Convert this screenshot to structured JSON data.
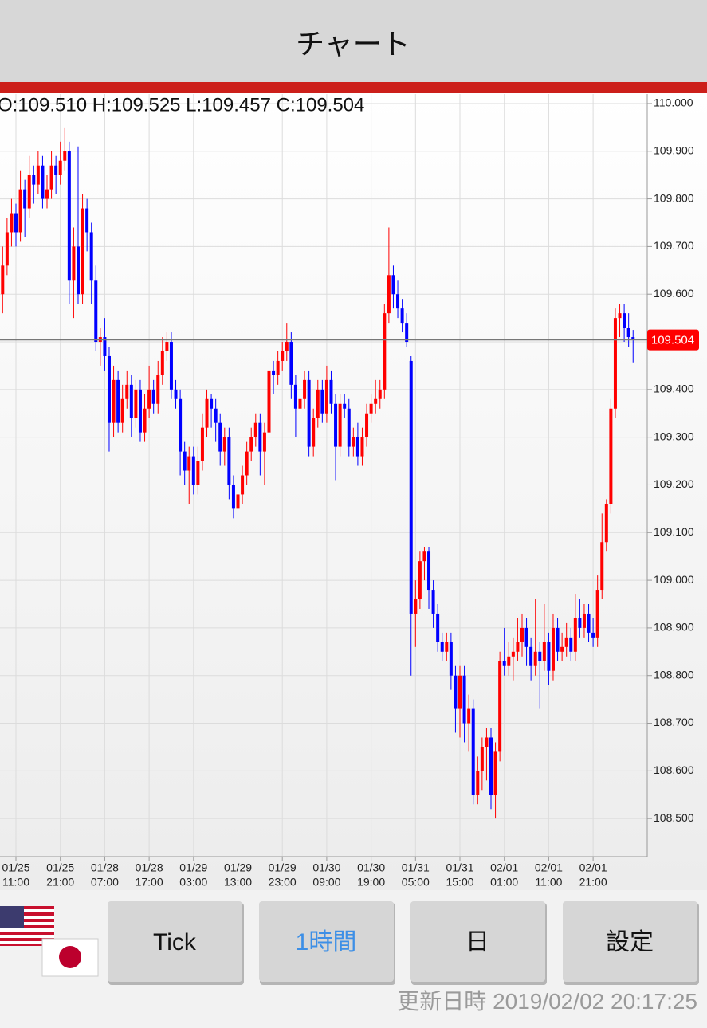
{
  "header": {
    "title": "チャート"
  },
  "chart_data": {
    "type": "candlestick",
    "ohlc_header": "O:109.510 H:109.525 L:109.457 C:109.504",
    "up_color": "#ff0000",
    "down_color": "#0000ff",
    "grid": true,
    "ylim": [
      108.42,
      110.02
    ],
    "yticks": [
      {
        "value": 110,
        "label": "110.000"
      },
      {
        "value": 109.9,
        "label": "109.900"
      },
      {
        "value": 109.8,
        "label": "109.800"
      },
      {
        "value": 109.7,
        "label": "109.700"
      },
      {
        "value": 109.6,
        "label": "109.600"
      },
      {
        "value": 109.5,
        "label": "109.500"
      },
      {
        "value": 109.4,
        "label": "109.400"
      },
      {
        "value": 109.3,
        "label": "109.300"
      },
      {
        "value": 109.2,
        "label": "109.200"
      },
      {
        "value": 109.1,
        "label": "109.100"
      },
      {
        "value": 109,
        "label": "109.000"
      },
      {
        "value": 108.9,
        "label": "108.900"
      },
      {
        "value": 108.8,
        "label": "108.800"
      },
      {
        "value": 108.7,
        "label": "108.700"
      },
      {
        "value": 108.6,
        "label": "108.600"
      },
      {
        "value": 108.5,
        "label": "108.500"
      }
    ],
    "categories": [
      null,
      null,
      null,
      [
        "01/25",
        "11:00"
      ],
      null,
      null,
      null,
      null,
      null,
      null,
      null,
      null,
      null,
      [
        "01/25",
        "21:00"
      ],
      null,
      null,
      null,
      null,
      null,
      null,
      null,
      null,
      null,
      [
        "01/28",
        "07:00"
      ],
      null,
      null,
      null,
      null,
      null,
      null,
      null,
      null,
      null,
      [
        "01/28",
        "17:00"
      ],
      null,
      null,
      null,
      null,
      null,
      null,
      null,
      null,
      null,
      [
        "01/29",
        "03:00"
      ],
      null,
      null,
      null,
      null,
      null,
      null,
      null,
      null,
      null,
      [
        "01/29",
        "13:00"
      ],
      null,
      null,
      null,
      null,
      null,
      null,
      null,
      null,
      null,
      [
        "01/29",
        "23:00"
      ],
      null,
      null,
      null,
      null,
      null,
      null,
      null,
      null,
      null,
      [
        "01/30",
        "09:00"
      ],
      null,
      null,
      null,
      null,
      null,
      null,
      null,
      null,
      null,
      [
        "01/30",
        "19:00"
      ],
      null,
      null,
      null,
      null,
      null,
      null,
      null,
      null,
      null,
      [
        "01/31",
        "05:00"
      ],
      null,
      null,
      null,
      null,
      null,
      null,
      null,
      null,
      null,
      [
        "01/31",
        "15:00"
      ],
      null,
      null,
      null,
      null,
      null,
      null,
      null,
      null,
      null,
      [
        "02/01",
        "01:00"
      ],
      null,
      null,
      null,
      null,
      null,
      null,
      null,
      null,
      null,
      [
        "02/01",
        "11:00"
      ],
      null,
      null,
      null,
      null,
      null,
      null,
      null,
      null,
      null,
      [
        "02/01",
        "21:00"
      ],
      null,
      null,
      null,
      null,
      null,
      null,
      null,
      null,
      null
    ],
    "ohlc": [
      [
        109.6,
        109.7,
        109.56,
        109.66
      ],
      [
        109.66,
        109.76,
        109.64,
        109.73
      ],
      [
        109.73,
        109.8,
        109.7,
        109.77
      ],
      [
        109.77,
        109.79,
        109.7,
        109.73
      ],
      [
        109.73,
        109.86,
        109.71,
        109.82
      ],
      [
        109.82,
        109.84,
        109.72,
        109.78
      ],
      [
        109.78,
        109.89,
        109.76,
        109.85
      ],
      [
        109.85,
        109.87,
        109.79,
        109.83
      ],
      [
        109.83,
        109.9,
        109.81,
        109.87
      ],
      [
        109.87,
        109.89,
        109.78,
        109.8
      ],
      [
        109.8,
        109.85,
        109.78,
        109.82
      ],
      [
        109.82,
        109.9,
        109.8,
        109.87
      ],
      [
        109.87,
        109.89,
        109.81,
        109.85
      ],
      [
        109.85,
        109.92,
        109.83,
        109.88
      ],
      [
        109.88,
        109.95,
        109.86,
        109.9
      ],
      [
        109.9,
        109.92,
        109.58,
        109.63
      ],
      [
        109.63,
        109.74,
        109.55,
        109.7
      ],
      [
        109.7,
        109.91,
        109.58,
        109.6
      ],
      [
        109.6,
        109.81,
        109.58,
        109.78
      ],
      [
        109.78,
        109.8,
        109.69,
        109.73
      ],
      [
        109.73,
        109.75,
        109.58,
        109.63
      ],
      [
        109.63,
        109.66,
        109.48,
        109.5
      ],
      [
        109.5,
        109.53,
        109.45,
        109.51
      ],
      [
        109.51,
        109.55,
        109.44,
        109.47
      ],
      [
        109.47,
        109.49,
        109.27,
        109.33
      ],
      [
        109.33,
        109.45,
        109.3,
        109.42
      ],
      [
        109.42,
        109.44,
        109.31,
        109.33
      ],
      [
        109.33,
        109.41,
        109.31,
        109.38
      ],
      [
        109.38,
        109.44,
        109.36,
        109.41
      ],
      [
        109.41,
        109.43,
        109.3,
        109.34
      ],
      [
        109.34,
        109.42,
        109.32,
        109.4
      ],
      [
        109.4,
        109.42,
        109.29,
        109.31
      ],
      [
        109.31,
        109.39,
        109.29,
        109.36
      ],
      [
        109.36,
        109.45,
        109.34,
        109.4
      ],
      [
        109.4,
        109.42,
        109.35,
        109.37
      ],
      [
        109.37,
        109.46,
        109.35,
        109.43
      ],
      [
        109.43,
        109.51,
        109.41,
        109.48
      ],
      [
        109.48,
        109.52,
        109.46,
        109.5
      ],
      [
        109.5,
        109.52,
        109.38,
        109.4
      ],
      [
        109.4,
        109.42,
        109.36,
        109.38
      ],
      [
        109.38,
        109.4,
        109.22,
        109.27
      ],
      [
        109.27,
        109.29,
        109.2,
        109.23
      ],
      [
        109.23,
        109.28,
        109.16,
        109.26
      ],
      [
        109.26,
        109.28,
        109.18,
        109.2
      ],
      [
        109.2,
        109.28,
        109.18,
        109.25
      ],
      [
        109.25,
        109.35,
        109.23,
        109.32
      ],
      [
        109.32,
        109.4,
        109.3,
        109.38
      ],
      [
        109.38,
        109.39,
        109.32,
        109.36
      ],
      [
        109.36,
        109.38,
        109.29,
        109.33
      ],
      [
        109.33,
        109.35,
        109.24,
        109.27
      ],
      [
        109.27,
        109.32,
        109.24,
        109.3
      ],
      [
        109.3,
        109.32,
        109.17,
        109.2
      ],
      [
        109.2,
        109.22,
        109.13,
        109.15
      ],
      [
        109.15,
        109.2,
        109.13,
        109.18
      ],
      [
        109.18,
        109.24,
        109.16,
        109.22
      ],
      [
        109.22,
        109.29,
        109.2,
        109.27
      ],
      [
        109.27,
        109.32,
        109.25,
        109.3
      ],
      [
        109.3,
        109.35,
        109.28,
        109.33
      ],
      [
        109.33,
        109.35,
        109.22,
        109.27
      ],
      [
        109.27,
        109.33,
        109.2,
        109.31
      ],
      [
        109.31,
        109.46,
        109.29,
        109.44
      ],
      [
        109.44,
        109.46,
        109.39,
        109.43
      ],
      [
        109.43,
        109.48,
        109.41,
        109.46
      ],
      [
        109.46,
        109.5,
        109.44,
        109.48
      ],
      [
        109.48,
        109.54,
        109.46,
        109.5
      ],
      [
        109.5,
        109.52,
        109.38,
        109.41
      ],
      [
        109.41,
        109.43,
        109.3,
        109.36
      ],
      [
        109.36,
        109.4,
        109.34,
        109.38
      ],
      [
        109.38,
        109.44,
        109.36,
        109.42
      ],
      [
        109.42,
        109.44,
        109.26,
        109.28
      ],
      [
        109.28,
        109.36,
        109.26,
        109.34
      ],
      [
        109.34,
        109.42,
        109.32,
        109.4
      ],
      [
        109.4,
        109.42,
        109.33,
        109.35
      ],
      [
        109.35,
        109.45,
        109.33,
        109.42
      ],
      [
        109.42,
        109.44,
        109.35,
        109.37
      ],
      [
        109.37,
        109.39,
        109.21,
        109.28
      ],
      [
        109.28,
        109.39,
        109.26,
        109.37
      ],
      [
        109.37,
        109.39,
        109.34,
        109.36
      ],
      [
        109.36,
        109.38,
        109.26,
        109.28
      ],
      [
        109.28,
        109.32,
        109.26,
        109.3
      ],
      [
        109.3,
        109.33,
        109.24,
        109.26
      ],
      [
        109.26,
        109.32,
        109.24,
        109.3
      ],
      [
        109.3,
        109.37,
        109.28,
        109.35
      ],
      [
        109.35,
        109.39,
        109.33,
        109.37
      ],
      [
        109.37,
        109.42,
        109.35,
        109.38
      ],
      [
        109.38,
        109.42,
        109.36,
        109.4
      ],
      [
        109.4,
        109.58,
        109.38,
        109.56
      ],
      [
        109.56,
        109.74,
        109.54,
        109.64
      ],
      [
        109.64,
        109.66,
        109.57,
        109.6
      ],
      [
        109.6,
        109.63,
        109.55,
        109.57
      ],
      [
        109.57,
        109.59,
        109.52,
        109.54
      ],
      [
        109.54,
        109.56,
        109.49,
        109.5
      ],
      [
        109.46,
        109.47,
        108.8,
        108.93
      ],
      [
        108.93,
        109.0,
        108.86,
        108.96
      ],
      [
        108.96,
        109.06,
        108.94,
        109.04
      ],
      [
        109.04,
        109.07,
        109.0,
        109.06
      ],
      [
        109.06,
        109.07,
        108.94,
        108.98
      ],
      [
        108.98,
        109.0,
        108.9,
        108.93
      ],
      [
        108.93,
        108.95,
        108.85,
        108.87
      ],
      [
        108.87,
        108.89,
        108.83,
        108.85
      ],
      [
        108.85,
        108.89,
        108.83,
        108.87
      ],
      [
        108.87,
        108.89,
        108.77,
        108.8
      ],
      [
        108.8,
        108.82,
        108.68,
        108.73
      ],
      [
        108.73,
        108.82,
        108.67,
        108.8
      ],
      [
        108.8,
        108.82,
        108.66,
        108.7
      ],
      [
        108.7,
        108.76,
        108.64,
        108.73
      ],
      [
        108.73,
        108.75,
        108.53,
        108.55
      ],
      [
        108.55,
        108.63,
        108.53,
        108.6
      ],
      [
        108.6,
        108.67,
        108.56,
        108.65
      ],
      [
        108.65,
        108.69,
        108.58,
        108.67
      ],
      [
        108.67,
        108.69,
        108.52,
        108.55
      ],
      [
        108.55,
        108.66,
        108.5,
        108.64
      ],
      [
        108.64,
        108.85,
        108.62,
        108.83
      ],
      [
        108.83,
        108.9,
        108.8,
        108.82
      ],
      [
        108.82,
        108.87,
        108.8,
        108.84
      ],
      [
        108.84,
        108.88,
        108.79,
        108.85
      ],
      [
        108.85,
        108.92,
        108.83,
        108.87
      ],
      [
        108.87,
        108.93,
        108.84,
        108.9
      ],
      [
        108.9,
        108.92,
        108.82,
        108.86
      ],
      [
        108.86,
        108.88,
        108.79,
        108.82
      ],
      [
        108.82,
        108.96,
        108.8,
        108.85
      ],
      [
        108.85,
        108.87,
        108.73,
        108.83
      ],
      [
        108.83,
        108.95,
        108.81,
        108.87
      ],
      [
        108.87,
        108.89,
        108.78,
        108.81
      ],
      [
        108.81,
        108.93,
        108.79,
        108.9
      ],
      [
        108.9,
        108.92,
        108.83,
        108.85
      ],
      [
        108.85,
        108.89,
        108.83,
        108.86
      ],
      [
        108.86,
        108.91,
        108.84,
        108.88
      ],
      [
        108.88,
        108.9,
        108.83,
        108.85
      ],
      [
        108.85,
        108.97,
        108.83,
        108.92
      ],
      [
        108.92,
        108.96,
        108.88,
        108.9
      ],
      [
        108.9,
        108.95,
        108.88,
        108.93
      ],
      [
        108.93,
        108.95,
        108.87,
        108.89
      ],
      [
        108.89,
        108.92,
        108.86,
        108.88
      ],
      [
        108.88,
        109.01,
        108.86,
        108.98
      ],
      [
        108.98,
        109.14,
        108.96,
        109.08
      ],
      [
        109.08,
        109.17,
        109.06,
        109.16
      ],
      [
        109.16,
        109.38,
        109.14,
        109.36
      ],
      [
        109.36,
        109.57,
        109.34,
        109.55
      ],
      [
        109.55,
        109.58,
        109.51,
        109.56
      ],
      [
        109.56,
        109.58,
        109.5,
        109.53
      ],
      [
        109.53,
        109.56,
        109.49,
        109.51
      ],
      [
        109.51,
        109.525,
        109.457,
        109.504
      ]
    ]
  },
  "buttons": [
    "Tick",
    "1時間",
    "日",
    "設定"
  ],
  "footer": {
    "label": "更新日時",
    "timestamp": "2019/02/02 20:17:25"
  }
}
